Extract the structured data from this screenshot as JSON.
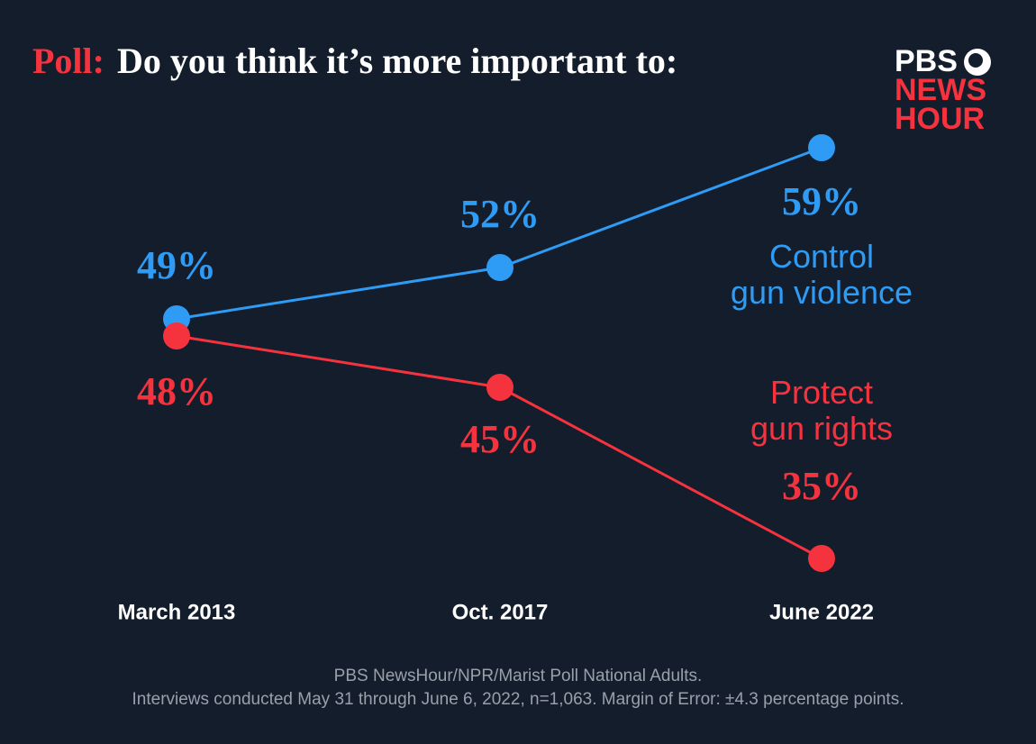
{
  "chart_data": {
    "type": "line",
    "title_label": "Poll:",
    "title": "Do you think it’s more important to:",
    "logo": [
      "PBS",
      "NEWS",
      "HOUR"
    ],
    "categories": [
      "March 2013",
      "Oct. 2017",
      "June 2022"
    ],
    "series": [
      {
        "name": "Control gun violence",
        "color": "#2e9bf5",
        "values": [
          49,
          52,
          59
        ],
        "value_labels": [
          "49%",
          "52%",
          "59%"
        ]
      },
      {
        "name": "Protect gun rights",
        "color": "#f5333f",
        "values": [
          48,
          45,
          35
        ],
        "value_labels": [
          "48%",
          "45%",
          "35%"
        ]
      }
    ],
    "ylim": [
      33,
      62
    ],
    "source": [
      "PBS NewsHour/NPR/Marist Poll National Adults.",
      "Interviews conducted May 31 through June 6, 2022, n=1,063. Margin of Error: ±4.3 percentage points."
    ]
  }
}
